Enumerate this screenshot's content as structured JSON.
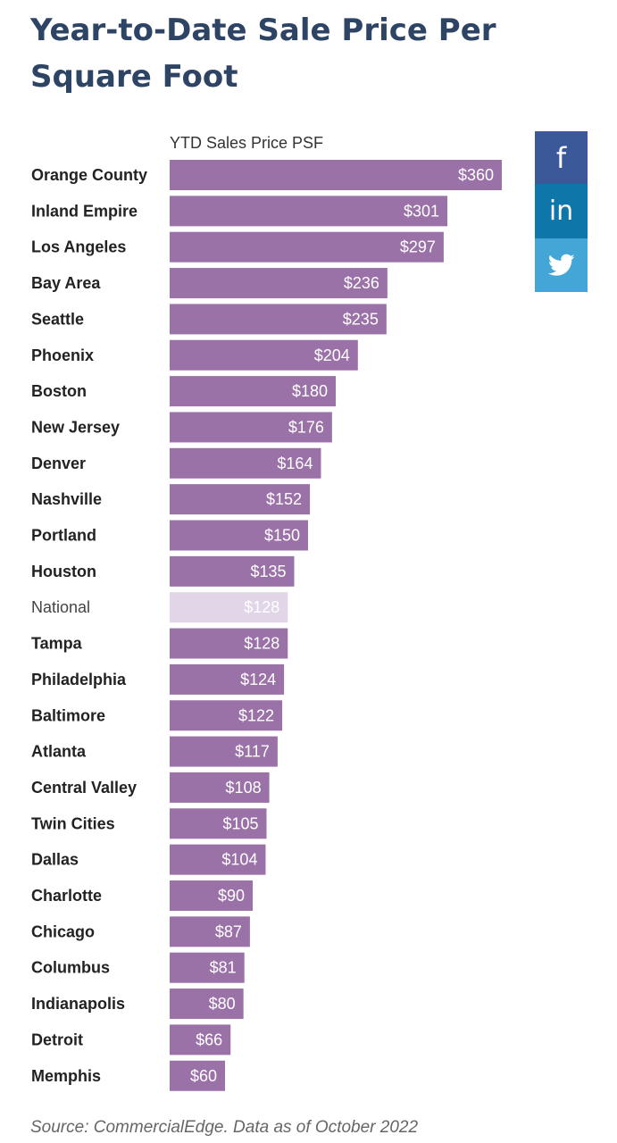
{
  "title": "Year-to-Date Sale Price Per Square Foot",
  "source": "Source: CommercialEdge. Data as of October 2022",
  "social": {
    "facebook_icon": "f",
    "linkedin_icon": "in",
    "twitter_icon": "twitter-bird"
  },
  "colors": {
    "bar": "#9b72a8",
    "bar_highlight": "#e1d6e8",
    "title": "#2e4465",
    "label": "#222222",
    "label_highlight": "#444444"
  },
  "chart_data": {
    "type": "bar",
    "orientation": "horizontal",
    "title": "Year-to-Date Sale Price Per Square Foot",
    "series_label": "YTD Sales Price PSF",
    "value_prefix": "$",
    "xlim": [
      0,
      360
    ],
    "highlight": "National",
    "categories": [
      "Orange County",
      "Inland Empire",
      "Los Angeles",
      "Bay Area",
      "Seattle",
      "Phoenix",
      "Boston",
      "New Jersey",
      "Denver",
      "Nashville",
      "Portland",
      "Houston",
      "National",
      "Tampa",
      "Philadelphia",
      "Baltimore",
      "Atlanta",
      "Central Valley",
      "Twin Cities",
      "Dallas",
      "Charlotte",
      "Chicago",
      "Columbus",
      "Indianapolis",
      "Detroit",
      "Memphis"
    ],
    "values": [
      360,
      301,
      297,
      236,
      235,
      204,
      180,
      176,
      164,
      152,
      150,
      135,
      128,
      128,
      124,
      122,
      117,
      108,
      105,
      104,
      90,
      87,
      81,
      80,
      66,
      60
    ]
  }
}
